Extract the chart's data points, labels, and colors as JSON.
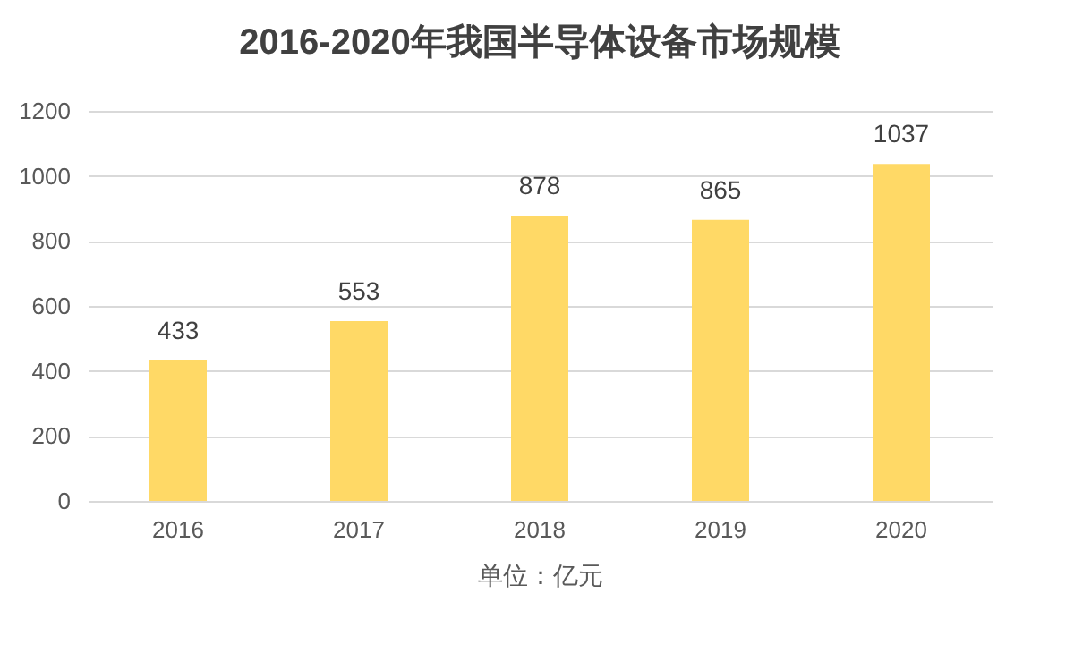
{
  "chart_data": {
    "type": "bar",
    "title": "2016-2020年我国半导体设备市场规模",
    "xlabel": "单位：亿元",
    "categories": [
      "2016",
      "2017",
      "2018",
      "2019",
      "2020"
    ],
    "values": [
      433,
      553,
      878,
      865,
      1037
    ],
    "color": "#ffd966",
    "ylim": [
      0,
      1200
    ],
    "yticks": [
      0,
      200,
      400,
      600,
      800,
      1000,
      1200
    ],
    "grid": "y",
    "data_labels": true
  }
}
